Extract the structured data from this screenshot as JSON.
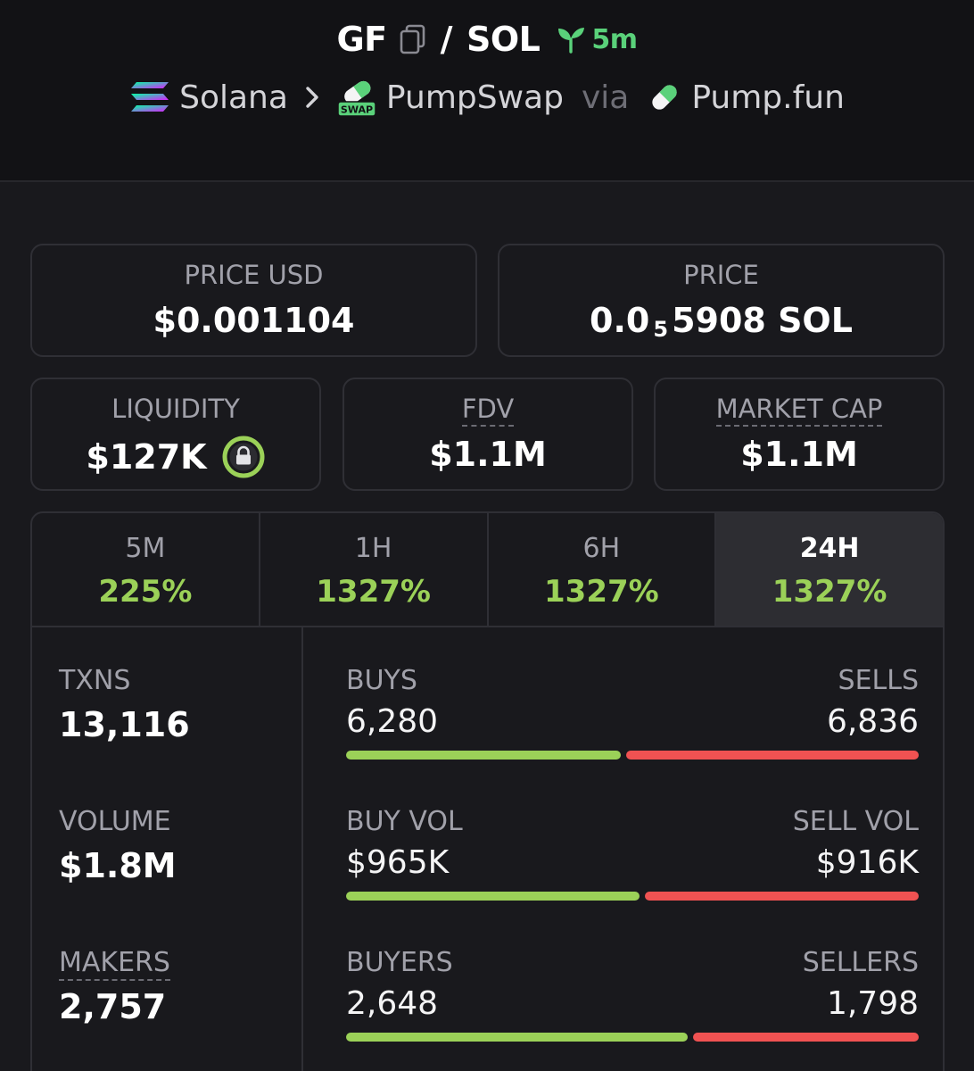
{
  "header": {
    "base": "GF",
    "quote": "SOL",
    "separator": "/",
    "age": "5m",
    "chain": "Solana",
    "dex": "PumpSwap",
    "via": "via",
    "launchpad": "Pump.fun",
    "icons": [
      "copy-icon",
      "sprout-icon",
      "solana-logo-icon",
      "chevron-right-icon",
      "pumpswap-logo-icon",
      "pill-icon"
    ]
  },
  "price_usd": {
    "label": "PRICE USD",
    "value": "$0.001104"
  },
  "price_native": {
    "label": "PRICE",
    "prefix": "0.0",
    "zeros": "5",
    "digits": "5908",
    "unit": "SOL"
  },
  "liquidity": {
    "label": "LIQUIDITY",
    "value": "$127K",
    "icon": "lock-icon"
  },
  "fdv": {
    "label": "FDV",
    "value": "$1.1M"
  },
  "market_cap": {
    "label": "MARKET CAP",
    "value": "$1.1M"
  },
  "tabs": [
    {
      "label": "5M",
      "change": "225%"
    },
    {
      "label": "1H",
      "change": "1327%"
    },
    {
      "label": "6H",
      "change": "1327%"
    },
    {
      "label": "24H",
      "change": "1327%",
      "active": true
    }
  ],
  "metrics": {
    "txns": {
      "label": "TXNS",
      "value": "13,116"
    },
    "volume": {
      "label": "VOLUME",
      "value": "$1.8M"
    },
    "makers": {
      "label": "MAKERS",
      "value": "2,757"
    }
  },
  "splits": {
    "txns": {
      "left_label": "BUYS",
      "right_label": "SELLS",
      "left_value": "6,280",
      "right_value": "6,836",
      "buy_fraction": 0.479
    },
    "volume": {
      "left_label": "BUY VOL",
      "right_label": "SELL VOL",
      "left_value": "$965K",
      "right_value": "$916K",
      "buy_fraction": 0.513
    },
    "makers": {
      "left_label": "BUYERS",
      "right_label": "SELLERS",
      "left_value": "2,648",
      "right_value": "1,798",
      "buy_fraction": 0.596
    }
  },
  "colors": {
    "positive": "#9bd158",
    "negative": "#f05252",
    "accent_green": "#5ad17a",
    "background": "#19191d"
  }
}
